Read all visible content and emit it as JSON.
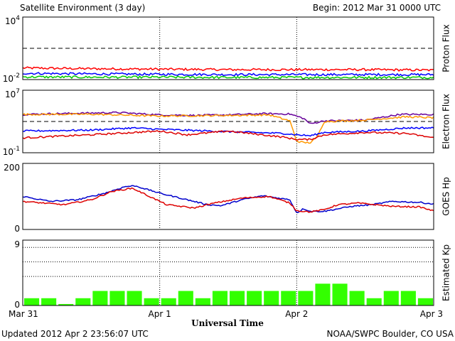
{
  "header": {
    "title": "Satellite Environment (3 day)",
    "begin": "Begin:  2012 Mar 31 0000 UTC"
  },
  "footer": {
    "updated": "Updated 2012 Apr  2 23:56:07 UTC",
    "credit": "NOAA/SWPC Boulder, CO USA"
  },
  "xaxis": {
    "title": "Universal Time",
    "ticks": [
      "Mar 31",
      "Apr 1",
      "Apr 2",
      "Apr 3"
    ]
  },
  "chart_data": [
    {
      "type": "line",
      "ylabel": "Proton Flux",
      "yscale": "log",
      "ylim": [
        0.01,
        10000
      ],
      "ytick_labels": [
        {
          "base": "10",
          "exp": "4"
        },
        {
          "base": "10",
          "exp": "-2"
        }
      ],
      "threshold": 10,
      "x_days": [
        0,
        3
      ],
      "series": [
        {
          "color": "#ff0000",
          "x": [
            0,
            0.5,
            1,
            1.5,
            2,
            2.5,
            3
          ],
          "y": [
            0.13,
            0.11,
            0.1,
            0.09,
            0.09,
            0.09,
            0.08
          ]
        },
        {
          "color": "#0000ff",
          "x": [
            0,
            0.5,
            1,
            1.5,
            2,
            2.5,
            3
          ],
          "y": [
            0.04,
            0.035,
            0.032,
            0.03,
            0.03,
            0.03,
            0.03
          ]
        },
        {
          "color": "#00cc00",
          "x": [
            0,
            0.5,
            1,
            1.5,
            2,
            2.5,
            3
          ],
          "y": [
            0.018,
            0.017,
            0.017,
            0.016,
            0.016,
            0.016,
            0.016
          ]
        }
      ]
    },
    {
      "type": "line",
      "ylabel": "Electron Flux",
      "yscale": "log",
      "ylim": [
        0.1,
        10000000
      ],
      "ytick_labels": [
        {
          "base": "10",
          "exp": "7"
        },
        {
          "base": "10",
          "exp": "-1"
        }
      ],
      "threshold": 1000,
      "x_days": [
        0,
        3
      ],
      "series": [
        {
          "color": "#660099",
          "x": [
            0,
            0.25,
            0.5,
            0.7,
            1.0,
            1.25,
            1.5,
            1.75,
            1.95,
            2.05,
            2.1,
            2.2,
            2.5,
            2.75,
            3.0
          ],
          "y": [
            8000,
            10000,
            12000,
            14000,
            7000,
            6000,
            7000,
            10000,
            9000,
            2500,
            500,
            1200,
            1500,
            8000,
            8000
          ]
        },
        {
          "color": "#ff9900",
          "x": [
            0,
            0.5,
            1.0,
            1.5,
            1.8,
            1.95,
            2.0,
            2.05,
            2.1,
            2.15,
            2.2,
            2.5,
            2.8,
            3.0
          ],
          "y": [
            8000,
            8500,
            5000,
            6000,
            7000,
            1200,
            3,
            2,
            2,
            10,
            1000,
            1500,
            4000,
            3000
          ]
        },
        {
          "color": "#0000ff",
          "x": [
            0,
            0.5,
            0.8,
            1.0,
            1.5,
            1.9,
            2.0,
            2.1,
            2.2,
            2.5,
            2.8,
            3.0
          ],
          "y": [
            60,
            80,
            150,
            100,
            50,
            30,
            20,
            15,
            40,
            60,
            150,
            150
          ]
        },
        {
          "color": "#dd0000",
          "x": [
            0,
            0.5,
            1.0,
            1.2,
            1.5,
            1.9,
            2.0,
            2.1,
            2.2,
            2.5,
            2.8,
            3.0
          ],
          "y": [
            8,
            20,
            60,
            20,
            60,
            10,
            5,
            5,
            20,
            40,
            30,
            8
          ]
        }
      ]
    },
    {
      "type": "line",
      "ylabel": "GOES Hp",
      "ylim": [
        0,
        200
      ],
      "ytick_labels": [
        "200",
        "0"
      ],
      "x_days": [
        0,
        3
      ],
      "series": [
        {
          "color": "#0000cc",
          "x": [
            0,
            0.2,
            0.4,
            0.6,
            0.75,
            0.82,
            1.0,
            1.2,
            1.35,
            1.45,
            1.6,
            1.75,
            1.95,
            2.0,
            2.05,
            2.1,
            2.2,
            2.4,
            2.55,
            2.7,
            2.9,
            3.0
          ],
          "y": [
            100,
            85,
            90,
            110,
            130,
            132,
            110,
            90,
            75,
            72,
            90,
            102,
            90,
            50,
            63,
            55,
            55,
            70,
            75,
            85,
            82,
            77
          ]
        },
        {
          "color": "#dd0000",
          "x": [
            0,
            0.3,
            0.5,
            0.65,
            0.8,
            0.95,
            1.05,
            1.25,
            1.4,
            1.6,
            1.8,
            1.95,
            2.0,
            2.1,
            2.2,
            2.3,
            2.45,
            2.7,
            2.9,
            3.0
          ],
          "y": [
            85,
            75,
            90,
            115,
            125,
            95,
            75,
            65,
            80,
            95,
            100,
            80,
            57,
            53,
            60,
            75,
            80,
            70,
            68,
            56
          ]
        }
      ]
    },
    {
      "type": "bar",
      "ylabel": "Estimated Kp",
      "ylim": [
        0,
        9
      ],
      "ytick_labels": [
        "9",
        "0"
      ],
      "color": "#33ff00",
      "gridlines": [
        4,
        6,
        8
      ],
      "values": [
        1,
        1,
        0.2,
        1,
        2,
        2,
        2,
        1,
        1,
        2,
        1,
        2,
        2,
        2,
        2,
        2,
        2,
        3,
        3,
        2,
        1,
        2,
        2,
        1
      ]
    }
  ]
}
